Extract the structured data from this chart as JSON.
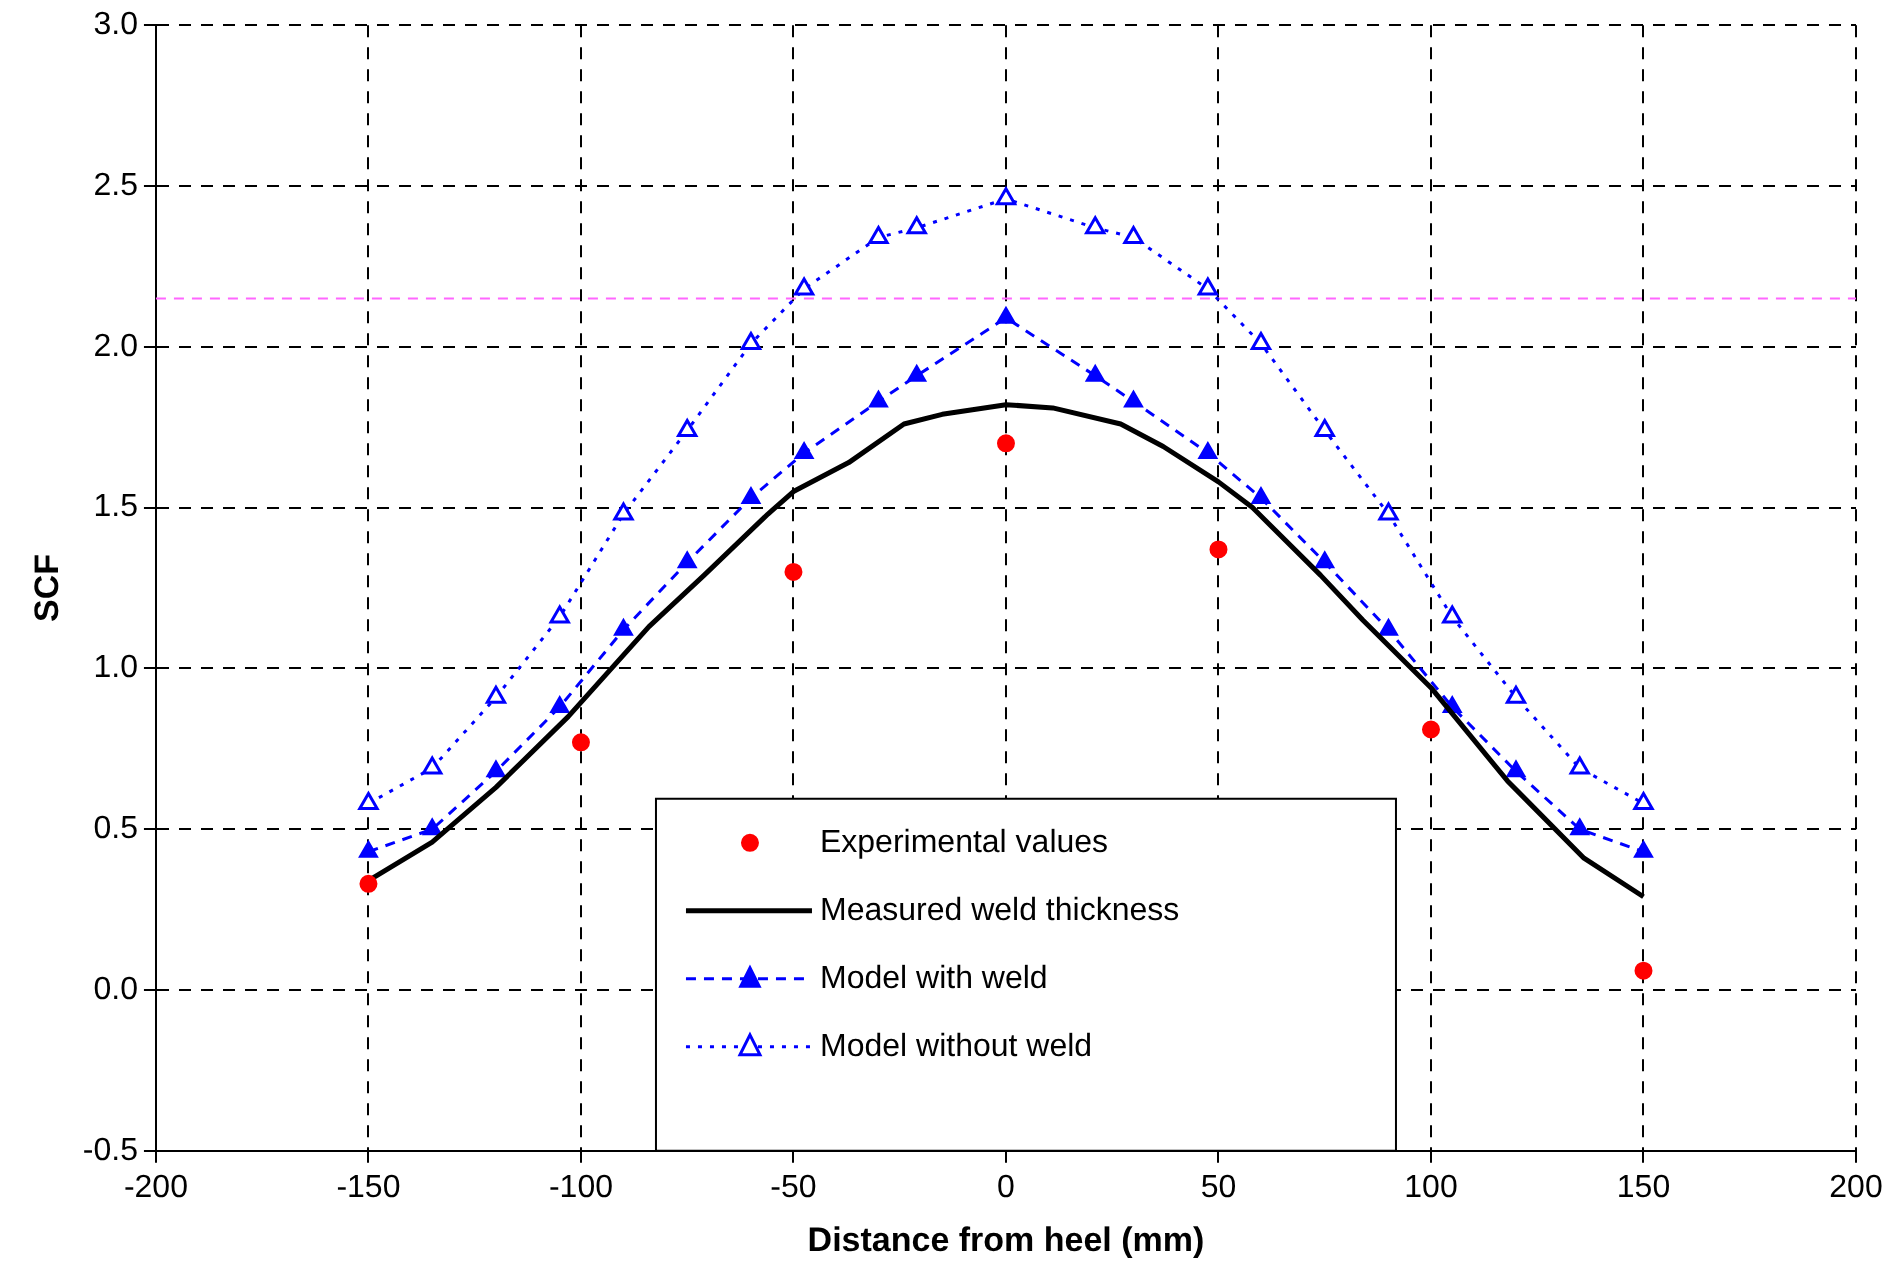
{
  "chart_data": {
    "type": "scatter",
    "xlabel": "Distance from heel (mm)",
    "ylabel": "SCF",
    "xlim": [
      -200,
      200
    ],
    "xticks": [
      -200,
      -150,
      -100,
      -50,
      0,
      50,
      100,
      150,
      200
    ],
    "ylim": [
      -0.5,
      3.0
    ],
    "yticks": [
      {
        "value": -0.5,
        "label": "-0.5"
      },
      {
        "value": 0,
        "label": "0.0"
      },
      {
        "value": 0.5,
        "label": "0.5"
      },
      {
        "value": 1,
        "label": "1.0"
      },
      {
        "value": 1.5,
        "label": "1.5"
      },
      {
        "value": 2,
        "label": "2.0"
      },
      {
        "value": 2.5,
        "label": "2.5"
      },
      {
        "value": 3,
        "label": "3.0"
      }
    ],
    "grid": true,
    "legend": "bottom",
    "ref_lines": [
      {
        "axis": "y",
        "value": 2.15,
        "color": "#ff66ff",
        "line_style": "dashed"
      }
    ],
    "series": [
      {
        "name": "Experimental values",
        "type": "scatter",
        "color": "#ff0000",
        "marker": "circle",
        "x": [
          -150,
          -100,
          -50,
          0,
          50,
          100,
          150
        ],
        "values": [
          0.33,
          0.77,
          1.3,
          1.7,
          1.37,
          0.81,
          0.06
        ]
      },
      {
        "name": "Measured weld thickness",
        "type": "line",
        "color": "#000000",
        "marker": "none",
        "line_style": "solid",
        "x": [
          -150,
          -135,
          -120,
          -103,
          -84,
          -71,
          -56,
          -50,
          -37,
          -24,
          -15,
          0,
          11,
          27,
          37,
          50,
          58,
          74,
          84,
          100,
          118,
          136,
          150
        ],
        "values": [
          0.34,
          0.46,
          0.63,
          0.85,
          1.13,
          1.29,
          1.48,
          1.55,
          1.64,
          1.76,
          1.79,
          1.82,
          1.81,
          1.76,
          1.69,
          1.58,
          1.5,
          1.29,
          1.15,
          0.94,
          0.65,
          0.41,
          0.29
        ]
      },
      {
        "name": "Model with weld",
        "type": "line",
        "color": "#0000ff",
        "marker": "triangle",
        "line_style": "dashed",
        "x": [
          -150,
          -135,
          -120,
          -105,
          -90,
          -75,
          -60,
          -47.5,
          -30,
          -21,
          0,
          21,
          30,
          47.5,
          60,
          75,
          90,
          105,
          120,
          135,
          150
        ],
        "values": [
          0.43,
          0.5,
          0.68,
          0.88,
          1.12,
          1.33,
          1.53,
          1.67,
          1.83,
          1.91,
          2.09,
          1.91,
          1.83,
          1.67,
          1.53,
          1.33,
          1.12,
          0.88,
          0.68,
          0.5,
          0.43
        ]
      },
      {
        "name": "Model without weld",
        "type": "line",
        "color": "#0000ff",
        "marker": "triangle",
        "line_style": "dotted",
        "x": [
          -150,
          -135,
          -120,
          -105,
          -90,
          -75,
          -60,
          -47.5,
          -30,
          -21,
          0,
          21,
          30,
          47.5,
          60,
          75,
          90,
          105,
          120,
          135,
          150
        ],
        "values": [
          0.58,
          0.69,
          0.91,
          1.16,
          1.48,
          1.74,
          2.01,
          2.18,
          2.34,
          2.37,
          2.46,
          2.37,
          2.34,
          2.18,
          2.01,
          1.74,
          1.48,
          1.16,
          0.91,
          0.69,
          0.58
        ]
      }
    ]
  }
}
